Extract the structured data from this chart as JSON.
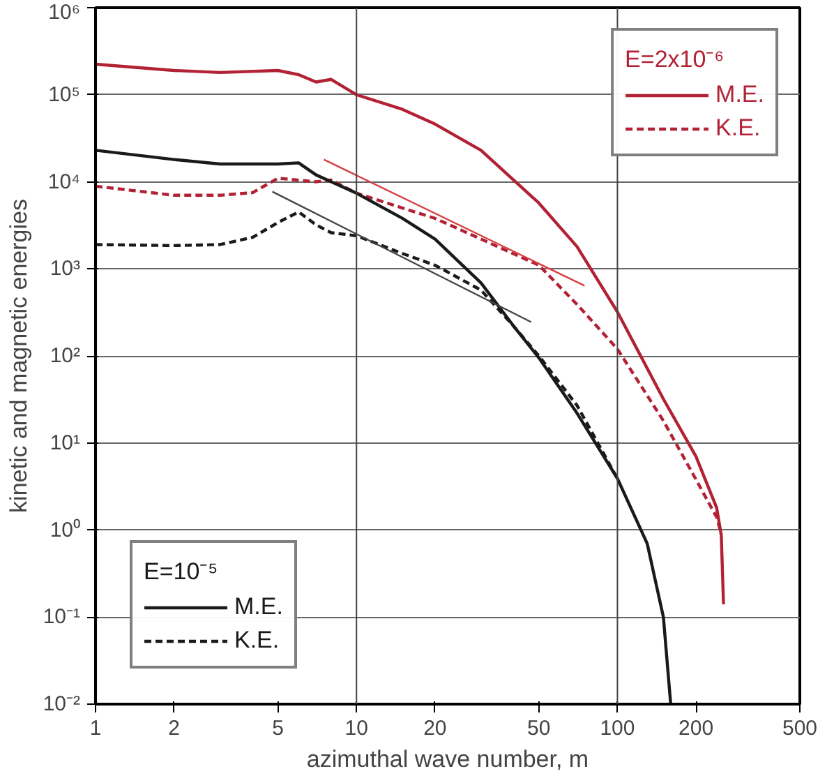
{
  "chart_data": {
    "type": "line",
    "xlabel": "azimuthal wave number, m",
    "ylabel": "kinetic and magnetic energies",
    "log": "xy",
    "xlim": [
      1,
      500
    ],
    "ylim": [
      0.01,
      1000000
    ],
    "xticks": [
      1,
      2,
      5,
      10,
      20,
      50,
      100,
      200,
      500
    ],
    "yticks": [
      {
        "value": 0.01,
        "label": "10⁻²"
      },
      {
        "value": 0.1,
        "label": "10⁻¹"
      },
      {
        "value": 1,
        "label": "10⁰"
      },
      {
        "value": 10,
        "label": "10¹"
      },
      {
        "value": 100,
        "label": "10²"
      },
      {
        "value": 1000,
        "label": "10³"
      },
      {
        "value": 10000,
        "label": "10⁴"
      },
      {
        "value": 100000,
        "label": "10⁵"
      },
      {
        "value": 1000000,
        "label": "10⁶"
      }
    ],
    "grid": "y",
    "ref_lines": [
      {
        "axis": "x",
        "value": 10,
        "color": "#444444"
      },
      {
        "axis": "x",
        "value": 100,
        "color": "#444444"
      }
    ],
    "legend": [
      "top right",
      "bottom left"
    ],
    "legend_title": [
      "E=2x10⁻⁶",
      "E=10⁻⁵"
    ],
    "series": [
      {
        "name": "M.E.",
        "color": "#b22234",
        "line_style": "solid",
        "x": [
          1,
          2,
          3,
          5,
          6,
          7,
          8,
          10,
          15,
          20,
          30,
          50,
          70,
          100,
          150,
          200,
          240,
          250,
          255
        ],
        "values": [
          224000,
          190000,
          180000,
          190000,
          170000,
          140000,
          150000,
          100000,
          68000,
          46000,
          23000,
          5700,
          1800,
          320,
          32,
          7,
          1.8,
          0.87,
          0.14
        ]
      },
      {
        "name": "K.E.",
        "color": "#b22234",
        "line_style": "dashed",
        "x": [
          1,
          2,
          3,
          4,
          5,
          7,
          8,
          10,
          15,
          20,
          30,
          50,
          70,
          100,
          150,
          200,
          240,
          250
        ],
        "values": [
          8900,
          7000,
          7000,
          7500,
          11000,
          10000,
          10500,
          7400,
          5000,
          3800,
          2200,
          1100,
          390,
          120,
          18,
          3.8,
          1.4,
          0.9
        ]
      },
      {
        "name": "M.E.",
        "color": "#1a1a1a",
        "line_style": "solid",
        "x": [
          1,
          2,
          3,
          5,
          6,
          7,
          10,
          15,
          20,
          30,
          40,
          50,
          70,
          100,
          130,
          150,
          160
        ],
        "values": [
          23000,
          18000,
          16000,
          16000,
          16500,
          12000,
          7400,
          3800,
          2200,
          690,
          220,
          95,
          22,
          3.9,
          0.7,
          0.1,
          0.01
        ]
      },
      {
        "name": "K.E.",
        "color": "#1a1a1a",
        "line_style": "dashed",
        "x": [
          1,
          2,
          3,
          4,
          5,
          6,
          7,
          8,
          10,
          15,
          20,
          30,
          40,
          50,
          70,
          100
        ],
        "values": [
          1900,
          1850,
          1900,
          2300,
          3400,
          4500,
          3200,
          2600,
          2400,
          1500,
          1100,
          570,
          220,
          100,
          27,
          3.9
        ]
      },
      {
        "type": "line",
        "color": "#d84040",
        "line_style": "solid",
        "x": [
          7.5,
          74.8
        ],
        "values": [
          18000,
          640
        ]
      },
      {
        "type": "line",
        "color": "#444444",
        "line_style": "solid",
        "x": [
          4.76,
          46.7
        ],
        "values": [
          7700,
          245
        ]
      }
    ]
  }
}
